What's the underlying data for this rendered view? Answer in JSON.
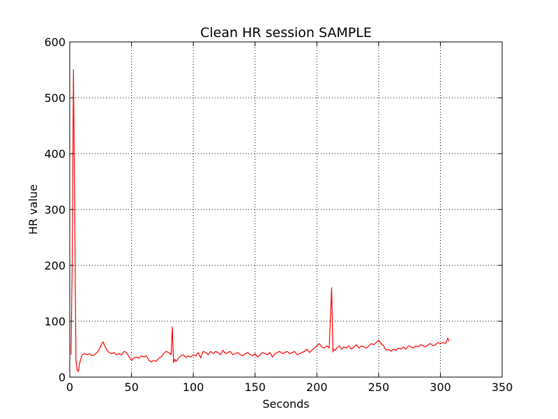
{
  "chart_data": {
    "type": "line",
    "title": "Clean HR session SAMPLE",
    "xlabel": "Seconds",
    "ylabel": "HR value",
    "xlim": [
      0,
      350
    ],
    "ylim": [
      0,
      600
    ],
    "xticks": [
      0,
      50,
      100,
      150,
      200,
      250,
      300,
      350
    ],
    "yticks": [
      0,
      100,
      200,
      300,
      400,
      500,
      600
    ],
    "grid": true,
    "series": [
      {
        "color": "#ff0000",
        "x": [
          1,
          2,
          3,
          4,
          5,
          6,
          7,
          8,
          10,
          12,
          14,
          16,
          18,
          20,
          22,
          24,
          26,
          27,
          28,
          30,
          32,
          34,
          36,
          38,
          40,
          42,
          44,
          46,
          48,
          50,
          52,
          54,
          56,
          58,
          60,
          62,
          64,
          66,
          68,
          70,
          72,
          74,
          76,
          78,
          80,
          82,
          83,
          84,
          85,
          86,
          88,
          90,
          92,
          94,
          96,
          98,
          100,
          102,
          104,
          106,
          108,
          110,
          112,
          114,
          116,
          118,
          120,
          122,
          124,
          126,
          128,
          130,
          132,
          134,
          136,
          138,
          140,
          142,
          144,
          146,
          148,
          150,
          152,
          154,
          156,
          158,
          160,
          162,
          164,
          166,
          168,
          170,
          172,
          174,
          176,
          178,
          180,
          182,
          184,
          186,
          188,
          190,
          192,
          194,
          196,
          198,
          200,
          202,
          204,
          206,
          208,
          210,
          212,
          213,
          214,
          215,
          216,
          218,
          220,
          222,
          224,
          226,
          228,
          230,
          232,
          234,
          236,
          238,
          240,
          242,
          244,
          246,
          248,
          250,
          252,
          254,
          256,
          258,
          260,
          262,
          264,
          266,
          268,
          270,
          272,
          274,
          276,
          278,
          280,
          282,
          284,
          286,
          288,
          290,
          292,
          294,
          296,
          298,
          300,
          302,
          304,
          305,
          306,
          307
        ],
        "y": [
          40,
          200,
          550,
          300,
          30,
          12,
          10,
          25,
          40,
          42,
          40,
          42,
          38,
          40,
          44,
          50,
          60,
          63,
          58,
          48,
          44,
          42,
          44,
          40,
          42,
          40,
          46,
          44,
          36,
          30,
          34,
          36,
          34,
          38,
          36,
          38,
          30,
          27,
          30,
          28,
          34,
          36,
          42,
          46,
          44,
          40,
          90,
          26,
          32,
          28,
          34,
          38,
          40,
          35,
          38,
          36,
          40,
          38,
          44,
          34,
          46,
          44,
          40,
          46,
          42,
          46,
          44,
          40,
          48,
          42,
          44,
          46,
          40,
          42,
          44,
          40,
          38,
          42,
          44,
          40,
          38,
          42,
          36,
          40,
          44,
          42,
          40,
          44,
          36,
          42,
          44,
          46,
          42,
          44,
          46,
          42,
          44,
          46,
          40,
          42,
          44,
          46,
          50,
          44,
          48,
          52,
          56,
          60,
          54,
          52,
          56,
          52,
          160,
          45,
          50,
          48,
          52,
          56,
          50,
          54,
          52,
          56,
          50,
          54,
          58,
          52,
          56,
          54,
          52,
          56,
          60,
          58,
          62,
          66,
          60,
          56,
          48,
          50,
          46,
          50,
          48,
          52,
          50,
          54,
          50,
          56,
          54,
          52,
          56,
          54,
          58,
          56,
          54,
          58,
          60,
          56,
          58,
          62,
          60,
          62,
          60,
          64,
          70,
          64
        ]
      }
    ]
  }
}
